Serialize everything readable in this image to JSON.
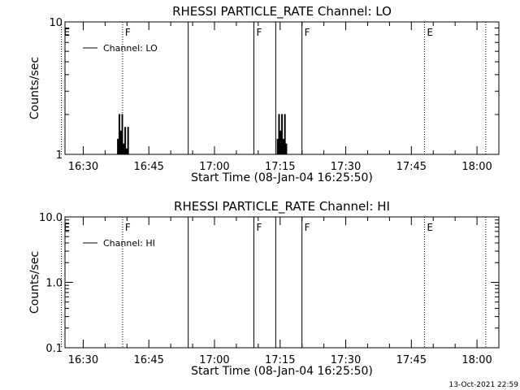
{
  "footer_timestamp": "13-Oct-2021 22:59",
  "chart_data": [
    {
      "type": "line",
      "title": "RHESSI PARTICLE_RATE Channel: LO",
      "xlabel": "Start Time (08-Jan-04 16:25:50)",
      "ylabel": "Counts/sec",
      "yscale": "log",
      "ylim": [
        1,
        10
      ],
      "ytick_labels": [
        "1",
        "10"
      ],
      "xtick_labels": [
        "16:30",
        "16:45",
        "17:00",
        "17:15",
        "17:30",
        "17:45",
        "18:00"
      ],
      "legend": {
        "placement": "top-left",
        "label": "Channel: LO"
      },
      "markers": [
        {
          "label": "E",
          "time": "16:25",
          "style": "dotted"
        },
        {
          "label": "F",
          "time": "16:39",
          "style": "dotted"
        },
        {
          "label": "",
          "time": "16:54",
          "style": "solid"
        },
        {
          "label": "F",
          "time": "17:09",
          "style": "solid"
        },
        {
          "label": "",
          "time": "17:14",
          "style": "solid"
        },
        {
          "label": "F",
          "time": "17:20",
          "style": "solid"
        },
        {
          "label": "E",
          "time": "17:48",
          "style": "dotted"
        },
        {
          "label": "",
          "time": "18:02",
          "style": "dotted"
        }
      ],
      "series": [
        {
          "x": [
            "16:37:30",
            "16:37:50",
            "16:38:10",
            "16:38:30",
            "16:38:50",
            "16:39:10",
            "16:39:30",
            "16:39:50",
            "16:40:10"
          ],
          "y": [
            1,
            1.3,
            2,
            1.5,
            2,
            1.2,
            1.6,
            1.1,
            1.6
          ]
        },
        {
          "x": [
            "17:14:20",
            "17:14:40",
            "17:15:00",
            "17:15:20",
            "17:15:40",
            "17:16:00",
            "17:16:20"
          ],
          "y": [
            1.3,
            2,
            1.5,
            2,
            1.3,
            2,
            1.2
          ]
        }
      ]
    },
    {
      "type": "line",
      "title": "RHESSI PARTICLE_RATE Channel: HI",
      "xlabel": "Start Time (08-Jan-04 16:25:50)",
      "ylabel": "Counts/sec",
      "yscale": "log",
      "ylim": [
        0.1,
        10
      ],
      "ytick_labels": [
        "0.1",
        "1.0",
        "10.0"
      ],
      "xtick_labels": [
        "16:30",
        "16:45",
        "17:00",
        "17:15",
        "17:30",
        "17:45",
        "18:00"
      ],
      "legend": {
        "placement": "top-left",
        "label": "Channel: HI"
      },
      "markers": [
        {
          "label": "E",
          "time": "16:25",
          "style": "dotted"
        },
        {
          "label": "F",
          "time": "16:39",
          "style": "dotted"
        },
        {
          "label": "",
          "time": "16:54",
          "style": "solid"
        },
        {
          "label": "F",
          "time": "17:09",
          "style": "solid"
        },
        {
          "label": "",
          "time": "17:14",
          "style": "solid"
        },
        {
          "label": "F",
          "time": "17:20",
          "style": "solid"
        },
        {
          "label": "E",
          "time": "17:48",
          "style": "dotted"
        },
        {
          "label": "",
          "time": "18:02",
          "style": "dotted"
        }
      ],
      "series": []
    }
  ]
}
